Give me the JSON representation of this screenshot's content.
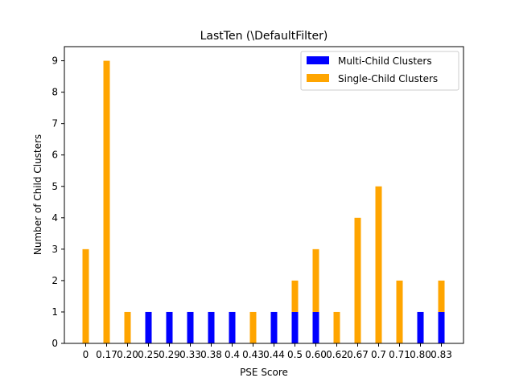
{
  "chart_data": {
    "type": "bar",
    "stacked": true,
    "title": "LastTen (\\DefaultFilter)",
    "xlabel": "PSE Score",
    "ylabel": "Number of Child Clusters",
    "categories": [
      "0",
      "0.17",
      "0.20",
      "0.25",
      "0.29",
      "0.33",
      "0.38",
      "0.4",
      "0.43",
      "0.44",
      "0.5",
      "0.60",
      "0.62",
      "0.67",
      "0.7",
      "0.71",
      "0.80",
      "0.83"
    ],
    "series": [
      {
        "name": "Multi-Child Clusters",
        "color": "#0000ff",
        "values": [
          0,
          0,
          0,
          1,
          1,
          1,
          1,
          1,
          0,
          1,
          1,
          1,
          0,
          0,
          0,
          0,
          1,
          1
        ]
      },
      {
        "name": "Single-Child Clusters",
        "color": "#ffa500",
        "values": [
          3,
          9,
          1,
          0,
          0,
          0,
          0,
          0,
          1,
          0,
          1,
          2,
          1,
          4,
          5,
          2,
          0,
          1
        ]
      }
    ],
    "ylim": [
      0,
      9.45
    ],
    "yticks": [
      0,
      1,
      2,
      3,
      4,
      5,
      6,
      7,
      8,
      9
    ],
    "grid": false,
    "legend_position": "top-right"
  }
}
